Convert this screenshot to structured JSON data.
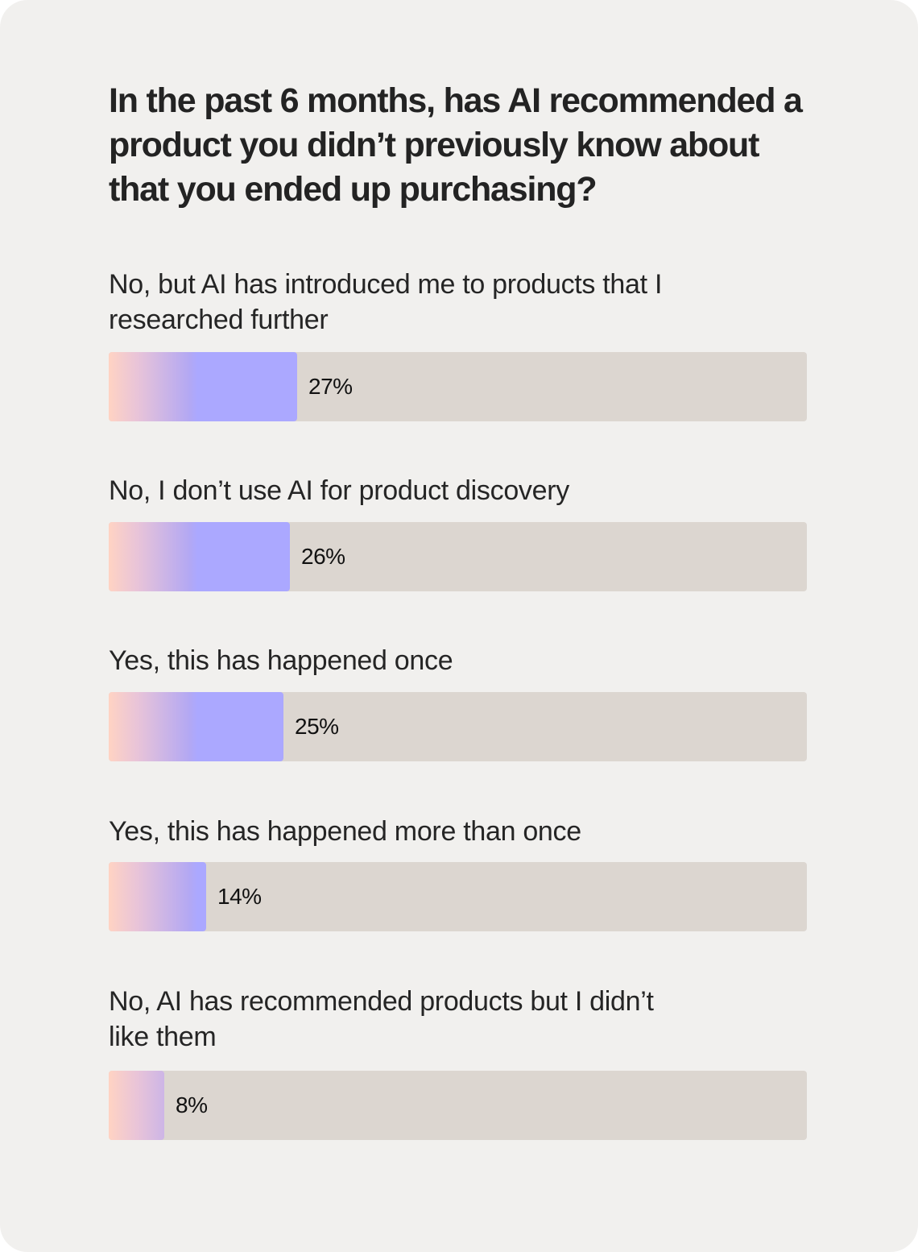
{
  "chart_data": {
    "type": "bar",
    "orientation": "horizontal",
    "title": "In the past 6 months, has AI recommended a product you didn’t previously know about that you ended up purchasing?",
    "categories": [
      "No, but AI has introduced me to products that I researched further",
      "No, I don’t use AI for product discovery",
      "Yes, this has happened once",
      "Yes, this has happened more than once",
      "No, AI has recommended products but I didn’t like them"
    ],
    "values": [
      27,
      26,
      25,
      14,
      8
    ],
    "value_labels": [
      "27%",
      "26%",
      "25%",
      "14%",
      "8%"
    ],
    "unit": "%",
    "xlim": [
      0,
      100
    ],
    "grid": false,
    "colors": {
      "bar_gradient_start": "#ffd3c3",
      "bar_gradient_end": "#aba8ff",
      "track": "#dcd6d0",
      "background": "#f1f0ee"
    }
  }
}
